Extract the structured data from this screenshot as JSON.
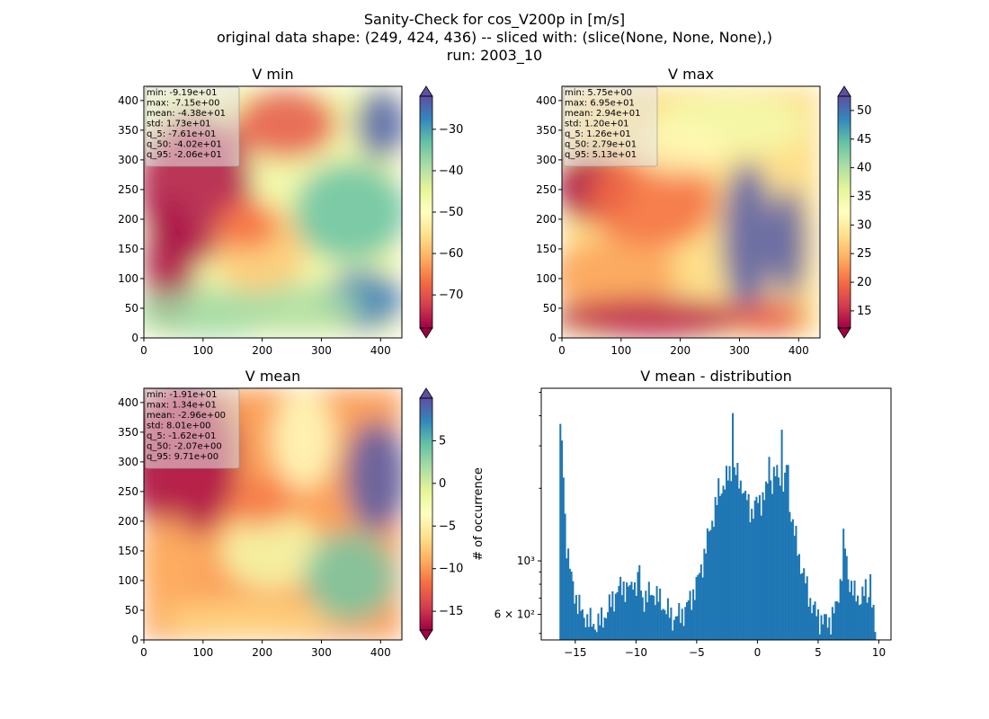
{
  "figure": {
    "title_lines": [
      "Sanity-Check for cos_V200p in [m/s]",
      "original data shape: (249, 424, 436) -- sliced with: (slice(None, None, None),)",
      "run: 2003_10"
    ]
  },
  "colormap": [
    "#9e0142",
    "#d53e4f",
    "#f46d43",
    "#fdae61",
    "#fee08b",
    "#ffffbf",
    "#e6f598",
    "#abdda4",
    "#66c2a5",
    "#3288bd",
    "#5e4fa2"
  ],
  "chart_data": [
    {
      "type": "heatmap",
      "title": "V min",
      "xlim": [
        0,
        436
      ],
      "ylim": [
        0,
        424
      ],
      "xticks": [
        0,
        100,
        200,
        300,
        400
      ],
      "yticks": [
        0,
        50,
        100,
        150,
        200,
        250,
        300,
        350,
        400
      ],
      "colorbar": {
        "range": [
          -78,
          -22
        ],
        "ticks": [
          -70,
          -60,
          -50,
          -40,
          -30
        ],
        "extend": "both"
      },
      "stats": [
        "min: -9.19e+01",
        "max: -7.15e+00",
        "mean: -4.38e+01",
        "std: 1.73e+01",
        "q_5: -7.61e+01",
        "q_50: -4.02e+01",
        "q_95: -2.06e+01"
      ]
    },
    {
      "type": "heatmap",
      "title": "V max",
      "xlim": [
        0,
        436
      ],
      "ylim": [
        0,
        424
      ],
      "xticks": [
        0,
        100,
        200,
        300,
        400
      ],
      "yticks": [
        0,
        50,
        100,
        150,
        200,
        250,
        300,
        350,
        400
      ],
      "colorbar": {
        "range": [
          12,
          52.5
        ],
        "ticks": [
          15,
          20,
          25,
          30,
          35,
          40,
          45,
          50
        ],
        "extend": "both"
      },
      "stats": [
        "min: 5.75e+00",
        "max: 6.95e+01",
        "mean: 2.94e+01",
        "std: 1.20e+01",
        "q_5: 1.26e+01",
        "q_50: 2.79e+01",
        "q_95: 5.13e+01"
      ]
    },
    {
      "type": "heatmap",
      "title": "V mean",
      "xlim": [
        0,
        436
      ],
      "ylim": [
        0,
        424
      ],
      "xticks": [
        0,
        100,
        200,
        300,
        400
      ],
      "yticks": [
        0,
        50,
        100,
        150,
        200,
        250,
        300,
        350,
        400
      ],
      "colorbar": {
        "range": [
          -17.2,
          10
        ],
        "ticks": [
          -15,
          -10,
          -5,
          0,
          5
        ],
        "extend": "both"
      },
      "stats": [
        "min: -1.91e+01",
        "max: 1.34e+01",
        "mean: -2.96e+00",
        "std: 8.01e+00",
        "q_5: -1.62e+01",
        "q_50: -2.07e+00",
        "q_95: 9.71e+00"
      ]
    },
    {
      "type": "bar",
      "title": "V mean - distribution",
      "ylabel": "# of occurrence",
      "yscale": "log",
      "xlim": [
        -17.8,
        11
      ],
      "ylim": [
        470,
        5200
      ],
      "xticks": [
        -15,
        -10,
        -5,
        0,
        5,
        10
      ],
      "yticks": [
        {
          "value": 1000,
          "label": "10³"
        },
        {
          "value": 600,
          "label": "6 × 10²"
        }
      ],
      "bar_color": "#1f77b4",
      "anchors": [
        [
          -16.2,
          3200
        ],
        [
          -16.0,
          2600
        ],
        [
          -15.8,
          1300
        ],
        [
          -15.4,
          880
        ],
        [
          -15.0,
          720
        ],
        [
          -14.5,
          610
        ],
        [
          -14.0,
          570
        ],
        [
          -13.5,
          545
        ],
        [
          -13.0,
          555
        ],
        [
          -12.5,
          600
        ],
        [
          -12.0,
          680
        ],
        [
          -11.5,
          760
        ],
        [
          -11.0,
          790
        ],
        [
          -10.5,
          760
        ],
        [
          -10.0,
          800
        ],
        [
          -9.8,
          820
        ],
        [
          -9.5,
          700
        ],
        [
          -9.0,
          720
        ],
        [
          -8.5,
          740
        ],
        [
          -8.0,
          680
        ],
        [
          -7.5,
          630
        ],
        [
          -7.0,
          580
        ],
        [
          -6.5,
          590
        ],
        [
          -6.0,
          620
        ],
        [
          -5.5,
          700
        ],
        [
          -5.0,
          800
        ],
        [
          -4.5,
          1000
        ],
        [
          -4.0,
          1300
        ],
        [
          -3.5,
          1650
        ],
        [
          -3.0,
          2000
        ],
        [
          -2.5,
          2200
        ],
        [
          -2.0,
          2450
        ],
        [
          -1.5,
          2150
        ],
        [
          -1.0,
          1850
        ],
        [
          -0.5,
          1600
        ],
        [
          0.0,
          1750
        ],
        [
          0.5,
          1850
        ],
        [
          1.0,
          2100
        ],
        [
          1.5,
          2300
        ],
        [
          2.0,
          2200
        ],
        [
          2.5,
          1900
        ],
        [
          3.0,
          1350
        ],
        [
          3.5,
          1000
        ],
        [
          4.0,
          800
        ],
        [
          4.5,
          650
        ],
        [
          5.0,
          590
        ],
        [
          5.5,
          560
        ],
        [
          6.0,
          570
        ],
        [
          6.5,
          640
        ],
        [
          7.0,
          950
        ],
        [
          7.2,
          1150
        ],
        [
          7.5,
          850
        ],
        [
          8.0,
          720
        ],
        [
          8.5,
          700
        ],
        [
          9.0,
          760
        ],
        [
          9.5,
          620
        ],
        [
          9.7,
          520
        ]
      ],
      "spikes": [
        [
          -16.2,
          3700
        ],
        [
          -14.1,
          530
        ],
        [
          -10.3,
          760
        ],
        [
          -9.75,
          960
        ],
        [
          -3.2,
          2200
        ],
        [
          -2.05,
          4100
        ],
        [
          -1.2,
          1900
        ],
        [
          0.95,
          2700
        ],
        [
          2.05,
          3500
        ],
        [
          2.45,
          2500
        ],
        [
          7.05,
          1360
        ],
        [
          9.3,
          880
        ]
      ]
    }
  ]
}
